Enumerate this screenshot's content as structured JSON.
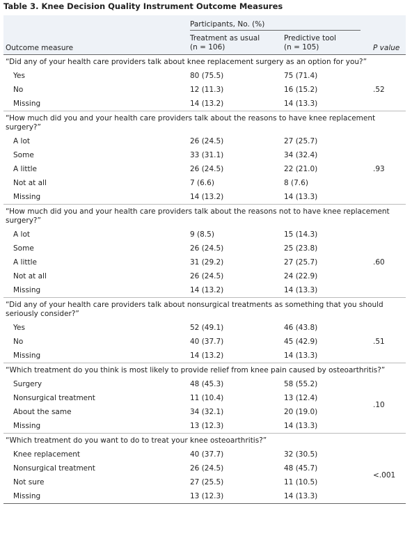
{
  "title": "Table 3. Knee Decision Quality Instrument Outcome Measures",
  "header": {
    "group": "Participants, No. (%)",
    "outcome": "Outcome measure",
    "col1": [
      "Treatment as usual",
      "(n = 106)"
    ],
    "col2": [
      "Predictive tool",
      "(n = 105)"
    ],
    "p": "P value"
  },
  "groups": [
    {
      "question": "“Did any of your health care providers talk about knee replacement surgery as an option for you?”",
      "p_value": ".52",
      "rows": [
        [
          "Yes",
          "80 (75.5)",
          "75 (71.4)"
        ],
        [
          "No",
          "12 (11.3)",
          "16 (15.2)"
        ],
        [
          "Missing",
          "14 (13.2)",
          "14 (13.3)"
        ]
      ]
    },
    {
      "question": "“How much did you and your health care providers talk about the reasons to have knee replacement surgery?”",
      "p_value": ".93",
      "rows": [
        [
          "A lot",
          "26 (24.5)",
          "27 (25.7)"
        ],
        [
          "Some",
          "33 (31.1)",
          "34 (32.4)"
        ],
        [
          "A little",
          "26 (24.5)",
          "22 (21.0)"
        ],
        [
          "Not at all",
          "7 (6.6)",
          "8 (7.6)"
        ],
        [
          "Missing",
          "14 (13.2)",
          "14 (13.3)"
        ]
      ]
    },
    {
      "question": "“How much did you and your health care providers talk about the reasons not to have knee replacement surgery?”",
      "p_value": ".60",
      "rows": [
        [
          "A lot",
          "9 (8.5)",
          "15 (14.3)"
        ],
        [
          "Some",
          "26 (24.5)",
          "25 (23.8)"
        ],
        [
          "A little",
          "31 (29.2)",
          "27 (25.7)"
        ],
        [
          "Not at all",
          "26 (24.5)",
          "24 (22.9)"
        ],
        [
          "Missing",
          "14 (13.2)",
          "14 (13.3)"
        ]
      ]
    },
    {
      "question": "“Did any of your health care providers talk about nonsurgical treatments as something that you should seriously consider?”",
      "p_value": ".51",
      "rows": [
        [
          "Yes",
          "52 (49.1)",
          "46 (43.8)"
        ],
        [
          "No",
          "40 (37.7)",
          "45 (42.9)"
        ],
        [
          "Missing",
          "14 (13.2)",
          "14 (13.3)"
        ]
      ]
    },
    {
      "question": "“Which treatment do you think is most likely to provide relief from knee pain caused by osteoarthritis?”",
      "p_value": ".10",
      "rows": [
        [
          "Surgery",
          "48 (45.3)",
          "58 (55.2)"
        ],
        [
          "Nonsurgical treatment",
          "11 (10.4)",
          "13 (12.4)"
        ],
        [
          "About the same",
          "34 (32.1)",
          "20 (19.0)"
        ],
        [
          "Missing",
          "13 (12.3)",
          "14 (13.3)"
        ]
      ]
    },
    {
      "question": "“Which treatment do you want to do to treat your knee osteoarthritis?”",
      "p_value": "<.001",
      "rows": [
        [
          "Knee replacement",
          "40 (37.7)",
          "32 (30.5)"
        ],
        [
          "Nonsurgical treatment",
          "26 (24.5)",
          "48 (45.7)"
        ],
        [
          "Not sure",
          "27 (25.5)",
          "11 (10.5)"
        ],
        [
          "Missing",
          "13 (12.3)",
          "14 (13.3)"
        ]
      ]
    }
  ]
}
